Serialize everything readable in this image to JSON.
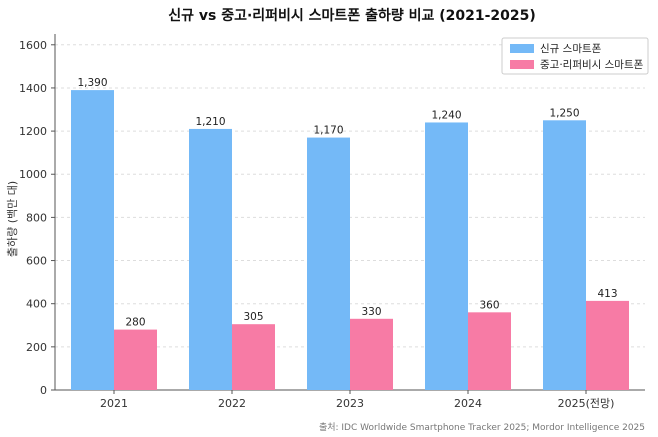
{
  "chart_data": {
    "type": "bar",
    "title": "신규 vs 중고·리퍼비시 스마트폰 출하량 비교 (2021-2025)",
    "xlabel": "",
    "ylabel": "출하량 (백만 대)",
    "categories": [
      "2021",
      "2022",
      "2023",
      "2024",
      "2025(전망)"
    ],
    "series": [
      {
        "name": "신규 스마트폰",
        "color": "#74b9f7",
        "values": [
          1390,
          1210,
          1170,
          1240,
          1250
        ],
        "labels": [
          "1,390",
          "1,210",
          "1,170",
          "1,240",
          "1,250"
        ]
      },
      {
        "name": "중고·리퍼비시 스마트폰",
        "color": "#f77ba5",
        "values": [
          280,
          305,
          330,
          360,
          413
        ],
        "labels": [
          "280",
          "305",
          "330",
          "360",
          "413"
        ]
      }
    ],
    "ylim": [
      0,
      1650
    ],
    "yticks": [
      0,
      200,
      400,
      600,
      800,
      1000,
      1200,
      1400,
      1600
    ],
    "ytick_labels": [
      "0",
      "200",
      "400",
      "600",
      "800",
      "1000",
      "1200",
      "1400",
      "1600"
    ],
    "grid": true,
    "legend_position": "top-right",
    "source": "출처: IDC Worldwide Smartphone Tracker 2025; Mordor Intelligence 2025"
  }
}
